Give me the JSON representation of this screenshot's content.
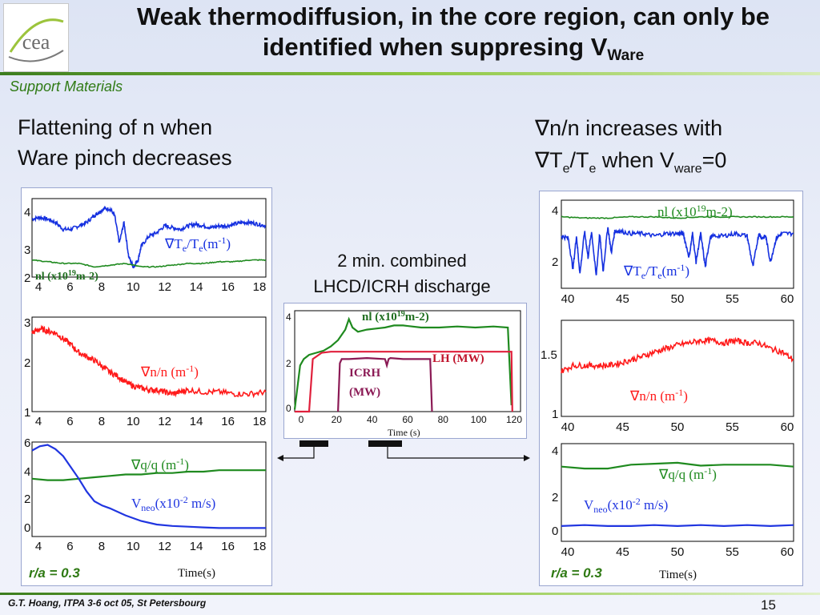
{
  "title": {
    "main": "Weak thermodiffusion, in the core region, can only be identified when suppresing V",
    "sub": "Ware"
  },
  "subtitle": "Support Materials",
  "logo": {
    "text": "cea"
  },
  "left_heading": {
    "line1": "Flattening of n when",
    "line2": "Ware pinch decreases"
  },
  "right_heading": {
    "line1": "n/n increases with",
    "line2_a": "T",
    "line2_b": "e",
    "line2_c": "/T",
    "line2_d": "e",
    "line2_e": " when V",
    "line2_f": "ware",
    "line2_g": "=0",
    "nabla": "∇"
  },
  "center_caption": {
    "line1": "2 min. combined",
    "line2": "LHCD/ICRH discharge"
  },
  "footer": {
    "author": "G.T. Hoang, ITPA 3-6 oct 05, St Petersbourg",
    "page": "15"
  },
  "left_panel": {
    "ra_label": "r/a = 0.3",
    "time_label": "Time(s)",
    "x_ticks": [
      "4",
      "6",
      "8",
      "10",
      "12",
      "14",
      "16",
      "18"
    ],
    "top": {
      "y_ticks": [
        "4",
        "3",
        "2"
      ],
      "gradT_label": "∇T",
      "gradT_sub1": "e",
      "gradT_mid": "/T",
      "gradT_sub2": "e",
      "gradT_unit": "(m",
      "gradT_exp": "-1",
      "gradT_close": ")",
      "nl_label": "nl (x10",
      "nl_exp": "19",
      "nl_unit": "m-2)"
    },
    "mid": {
      "y_ticks": [
        "3",
        "2",
        "1"
      ],
      "label": "∇n/n (m",
      "exp": "-1",
      "close": ")"
    },
    "bot": {
      "y_ticks": [
        "6",
        "4",
        "2",
        "0"
      ],
      "gradq_label": "∇q/q (m",
      "gradq_exp": "-1",
      "gradq_close": ")",
      "vneo_label": "V",
      "vneo_sub": "neo",
      "vneo_unit": "(x10",
      "vneo_exp": "-2",
      "vneo_close": " m/s)"
    }
  },
  "right_panel": {
    "ra_label": "r/a = 0.3",
    "time_label": "Time(s)",
    "x_ticks": [
      "40",
      "45",
      "50",
      "55",
      "60"
    ],
    "top": {
      "y_ticks": [
        "4",
        "2"
      ],
      "nl_label": "nl (x10",
      "nl_exp": "19",
      "nl_unit": "m-2)",
      "gradT_label": "∇T",
      "gradT_sub1": "e",
      "gradT_mid": "/T",
      "gradT_sub2": "e",
      "gradT_unit": "(m",
      "gradT_exp": "-1",
      "gradT_close": ")"
    },
    "mid": {
      "y_ticks": [
        "1.5",
        "1"
      ],
      "label": "∇n/n (m",
      "exp": "-1",
      "close": ")"
    },
    "bot": {
      "y_ticks": [
        "4",
        "2",
        "0"
      ],
      "gradq_label": "∇q/q (m",
      "gradq_exp": "-1",
      "gradq_close": ")",
      "vneo_label": "V",
      "vneo_sub": "neo",
      "vneo_unit": "(x10",
      "vneo_exp": "-2",
      "vneo_close": " m/s)"
    }
  },
  "center_panel": {
    "x_ticks": [
      "0",
      "20",
      "40",
      "60",
      "80",
      "100",
      "120"
    ],
    "y_ticks": [
      "4",
      "2",
      "0"
    ],
    "xlabel": "Time (s)",
    "nl_label": "nl (x10",
    "nl_exp": "19",
    "nl_unit": "m-2)",
    "lh_label": "LH (MW)",
    "icrh_label1": "ICRH",
    "icrh_label2": "(MW)"
  },
  "colors": {
    "nl": "#1f8a1f",
    "gradT": "#1530e0",
    "gradn": "#ff1a1a",
    "gradq": "#1f8a1f",
    "vneo": "#2035e0",
    "lh": "#e0203c",
    "icrh": "#8b1a55",
    "accent": "#2f7a14"
  },
  "chart_data": [
    {
      "type": "line",
      "panel": "left-top",
      "xlim": [
        3,
        18
      ],
      "ylim": [
        2,
        4.3
      ],
      "series": [
        {
          "name": "∇Te/Te (m-1)",
          "x": [
            3,
            3.5,
            4,
            4.5,
            5,
            5.5,
            6,
            6.5,
            7,
            7.3,
            7.6,
            8,
            8.3,
            8.6,
            8.9,
            9.2,
            9.5,
            9.8,
            10,
            10.5,
            11,
            11.5,
            12,
            12.5,
            13,
            13.5,
            14,
            14.5,
            15,
            15.5,
            16,
            16.5,
            17,
            17.5,
            18
          ],
          "y": [
            3.7,
            3.75,
            3.7,
            3.6,
            3.4,
            3.4,
            3.5,
            3.6,
            3.8,
            3.9,
            4.0,
            4.0,
            3.8,
            3.0,
            3.6,
            2.6,
            2.3,
            2.5,
            2.9,
            3.2,
            3.3,
            3.5,
            3.45,
            3.4,
            3.5,
            3.55,
            3.5,
            3.45,
            3.5,
            3.5,
            3.55,
            3.6,
            3.6,
            3.55,
            3.5
          ]
        },
        {
          "name": "nl (x1019m-2)",
          "x": [
            3,
            4,
            5,
            6,
            7,
            8,
            9,
            10,
            11,
            12,
            13,
            14,
            15,
            16,
            17,
            18
          ],
          "y": [
            2.5,
            2.45,
            2.4,
            2.4,
            2.3,
            2.35,
            2.4,
            2.3,
            2.3,
            2.35,
            2.4,
            2.4,
            2.45,
            2.45,
            2.5,
            2.5
          ]
        }
      ]
    },
    {
      "type": "line",
      "panel": "left-mid",
      "xlim": [
        3,
        18
      ],
      "ylim": [
        0.9,
        3.3
      ],
      "series": [
        {
          "name": "∇n/n (m-1)",
          "x": [
            3,
            3.5,
            4,
            4.5,
            5,
            5.5,
            6,
            6.5,
            7,
            7.5,
            8,
            8.5,
            9,
            9.5,
            10,
            10.5,
            11,
            11.5,
            12,
            12.5,
            13,
            14,
            15,
            16,
            17,
            18
          ],
          "y": [
            2.9,
            3.0,
            2.95,
            2.9,
            2.75,
            2.6,
            2.4,
            2.3,
            2.2,
            2.05,
            1.9,
            1.8,
            1.65,
            1.55,
            1.5,
            1.45,
            1.45,
            1.4,
            1.35,
            1.4,
            1.45,
            1.4,
            1.4,
            1.35,
            1.35,
            1.4
          ]
        }
      ]
    },
    {
      "type": "line",
      "panel": "left-bot",
      "xlim": [
        3,
        18
      ],
      "ylim": [
        -0.5,
        6.2
      ],
      "series": [
        {
          "name": "∇q/q (m-1)",
          "x": [
            3,
            4,
            5,
            6,
            7,
            8,
            9,
            10,
            11,
            12,
            13,
            14,
            15,
            16,
            17,
            18
          ],
          "y": [
            3.6,
            3.5,
            3.5,
            3.6,
            3.7,
            3.8,
            3.9,
            3.9,
            4.0,
            4.0,
            4.1,
            4.1,
            4.2,
            4.2,
            4.2,
            4.2
          ]
        },
        {
          "name": "Vneo (x10-2 m/s)",
          "x": [
            3,
            3.5,
            4,
            4.5,
            5,
            5.5,
            6,
            6.5,
            7,
            7.5,
            8,
            9,
            10,
            11,
            12,
            13,
            14,
            15,
            16,
            17,
            18
          ],
          "y": [
            5.6,
            5.9,
            6.0,
            5.7,
            5.2,
            4.4,
            3.6,
            2.7,
            2.0,
            1.7,
            1.5,
            1.0,
            0.6,
            0.35,
            0.25,
            0.2,
            0.15,
            0.1,
            0.1,
            0.1,
            0.1
          ]
        }
      ]
    },
    {
      "type": "line",
      "panel": "center",
      "xlim": [
        0,
        125
      ],
      "ylim": [
        0,
        4.8
      ],
      "series": [
        {
          "name": "nl (x1019m-2)",
          "x": [
            0,
            3,
            5,
            8,
            12,
            16,
            20,
            24,
            28,
            30,
            32,
            35,
            40,
            45,
            50,
            55,
            60,
            70,
            80,
            90,
            100,
            110,
            118,
            120
          ],
          "y": [
            0.1,
            2.2,
            2.5,
            2.7,
            2.8,
            2.9,
            3.1,
            3.4,
            3.9,
            4.4,
            4.0,
            3.8,
            3.9,
            3.95,
            4.0,
            4.1,
            4.1,
            4.0,
            4.0,
            4.05,
            4.0,
            4.05,
            4.0,
            0.3
          ]
        },
        {
          "name": "LH (MW)",
          "x": [
            0,
            8,
            10,
            15,
            20,
            40,
            60,
            80,
            100,
            120,
            120.5
          ],
          "y": [
            0,
            0,
            2.5,
            2.8,
            2.85,
            2.85,
            2.85,
            2.85,
            2.85,
            2.85,
            0
          ]
        },
        {
          "name": "ICRH (MW)",
          "x": [
            24,
            25,
            26,
            30,
            40,
            50,
            51,
            52,
            53,
            60,
            70,
            75,
            76
          ],
          "y": [
            0,
            2.3,
            2.5,
            2.5,
            2.55,
            2.5,
            2.2,
            2.5,
            2.55,
            2.5,
            2.5,
            2.5,
            0
          ]
        }
      ]
    },
    {
      "type": "line",
      "panel": "right-top",
      "xlim": [
        40,
        60
      ],
      "ylim": [
        1,
        4.7
      ],
      "series": [
        {
          "name": "nl (x1019m-2)",
          "x": [
            40,
            42,
            44,
            46,
            48,
            50,
            52,
            54,
            56,
            58,
            60
          ],
          "y": [
            4.0,
            3.95,
            3.95,
            4.0,
            4.0,
            3.95,
            4.0,
            4.0,
            4.0,
            4.0,
            4.0
          ]
        },
        {
          "name": "∇Te/Te (m-1)",
          "x": [
            40,
            40.6,
            41,
            41.3,
            41.6,
            42,
            42.3,
            42.6,
            43,
            43.3,
            43.6,
            44,
            44.3,
            44.6,
            45,
            46,
            47,
            48,
            49,
            50,
            50.5,
            51,
            51.3,
            51.6,
            52,
            52.4,
            52.8,
            53,
            54,
            55,
            56,
            56.5,
            57,
            57.3,
            57.6,
            58,
            58.5,
            59,
            60
          ],
          "y": [
            3.2,
            3.1,
            1.8,
            3.2,
            1.6,
            3.4,
            2.3,
            3.4,
            1.5,
            3.3,
            1.7,
            3.6,
            2.5,
            3.4,
            3.4,
            3.3,
            3.3,
            3.2,
            3.3,
            3.3,
            3.3,
            2.3,
            3.3,
            2.1,
            3.3,
            1.9,
            3.1,
            3.2,
            3.2,
            3.3,
            3.2,
            1.9,
            3.3,
            3.1,
            3.2,
            2.1,
            3.1,
            3.3,
            3.3
          ]
        }
      ]
    },
    {
      "type": "line",
      "panel": "right-mid",
      "xlim": [
        40,
        60
      ],
      "ylim": [
        0.85,
        1.7
      ],
      "series": [
        {
          "name": "∇n/n (m-1)",
          "x": [
            40,
            41,
            42,
            43,
            44,
            45,
            46,
            47,
            48,
            49,
            50,
            51,
            52,
            53,
            54,
            55,
            56,
            57,
            58,
            59,
            60
          ],
          "y": [
            1.25,
            1.3,
            1.3,
            1.3,
            1.3,
            1.32,
            1.35,
            1.38,
            1.42,
            1.45,
            1.48,
            1.5,
            1.52,
            1.52,
            1.5,
            1.52,
            1.5,
            1.5,
            1.45,
            1.42,
            1.35
          ]
        }
      ]
    },
    {
      "type": "line",
      "panel": "right-bot",
      "xlim": [
        40,
        60
      ],
      "ylim": [
        -0.5,
        4.6
      ],
      "series": [
        {
          "name": "∇q/q (m-1)",
          "x": [
            40,
            42,
            44,
            46,
            48,
            50,
            52,
            54,
            56,
            58,
            60
          ],
          "y": [
            3.4,
            3.3,
            3.3,
            3.5,
            3.55,
            3.6,
            3.45,
            3.5,
            3.5,
            3.5,
            3.4
          ]
        },
        {
          "name": "Vneo (x10-2 m/s)",
          "x": [
            40,
            42,
            44,
            46,
            48,
            50,
            52,
            54,
            56,
            58,
            60
          ],
          "y": [
            0.3,
            0.35,
            0.3,
            0.3,
            0.35,
            0.3,
            0.35,
            0.3,
            0.35,
            0.3,
            0.35
          ]
        }
      ]
    }
  ]
}
